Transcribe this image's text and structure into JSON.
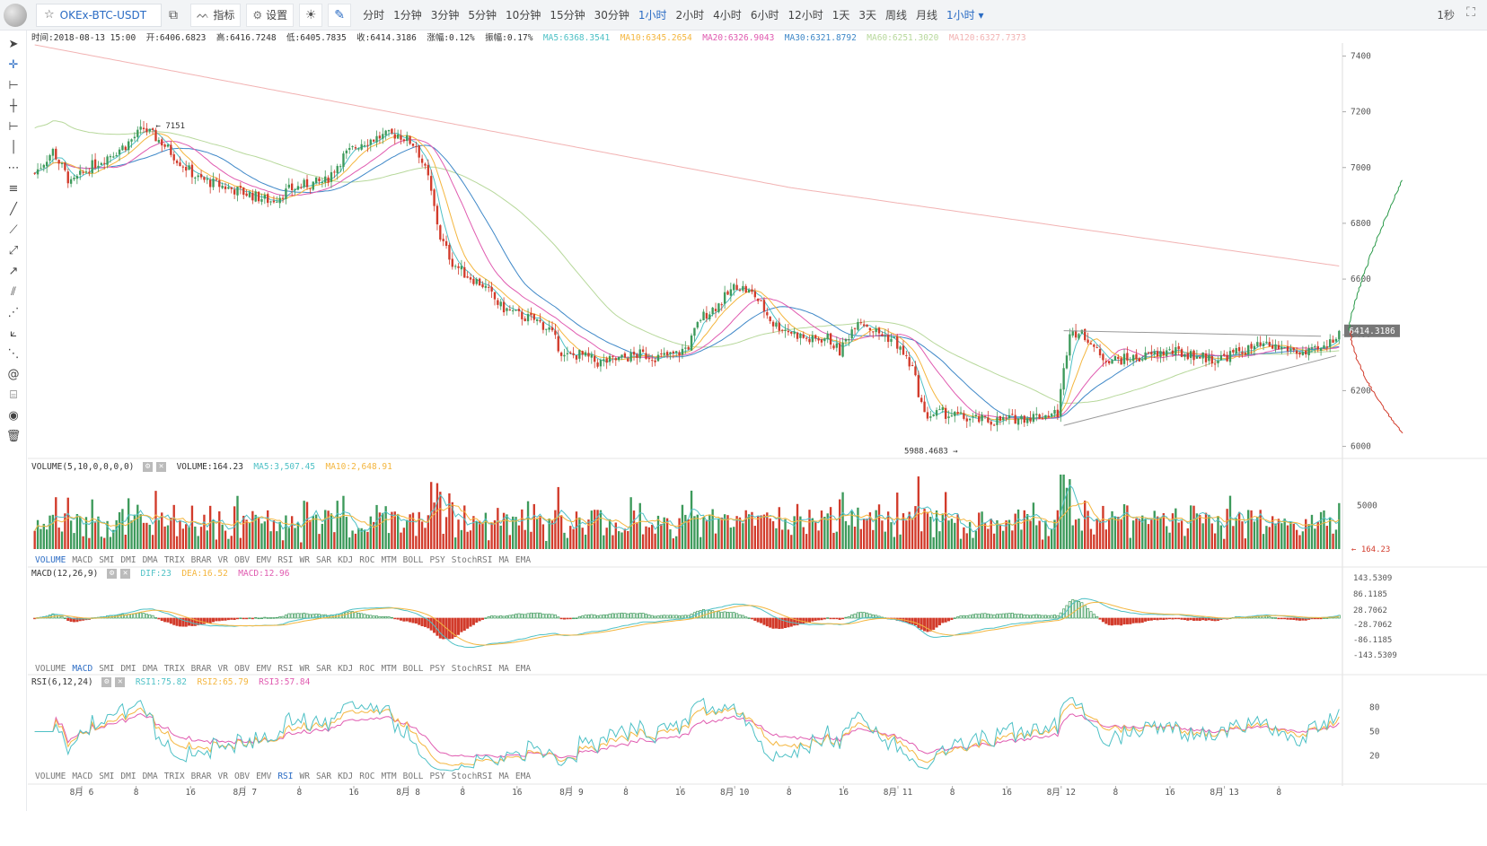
{
  "toolbar": {
    "pair": "OKEx-BTC-USDT",
    "indicator_label": "指标",
    "settings_label": "设置",
    "periods": [
      "分时",
      "1分钟",
      "3分钟",
      "5分钟",
      "10分钟",
      "15分钟",
      "30分钟",
      "1小时",
      "2小时",
      "4小时",
      "6小时",
      "12小时",
      "1天",
      "3天",
      "周线",
      "月线"
    ],
    "active_period": "1小时",
    "period_dropdown": "1小时",
    "refresh": "1秒"
  },
  "info_bar": {
    "time": "时间:2018-08-13 15:00",
    "open": "开:6406.6823",
    "high": "高:6416.7248",
    "low": "低:6405.7835",
    "close": "收:6414.3186",
    "change": "涨幅:0.12%",
    "amplitude": "振幅:0.17%",
    "ma5": "MA5:6368.3541",
    "ma10": "MA10:6345.2654",
    "ma20": "MA20:6326.9043",
    "ma30": "MA30:6321.8792",
    "ma60": "MA60:6251.3020",
    "ma120": "MA120:6327.7373"
  },
  "price_axis": [
    "7400",
    "7200",
    "7000",
    "6800",
    "6600",
    "6400",
    "6200",
    "6000"
  ],
  "price_label": "6414.3186",
  "annotations": {
    "high": "7151",
    "low": "5988.4683"
  },
  "volume_info": {
    "title": "VOLUME(5,10,0,0,0,0)",
    "volume": "VOLUME:164.23",
    "ma5": "MA5:3,507.45",
    "ma10": "MA10:2,648.91",
    "axis": "5000",
    "last": "164.23"
  },
  "macd_info": {
    "title": "MACD(12,26,9)",
    "dif": "DIF:23",
    "dea": "DEA:16.52",
    "macd": "MACD:12.96",
    "axis": [
      "143.5309",
      "86.1185",
      "28.7062",
      "-28.7062",
      "-86.1185",
      "-143.5309"
    ]
  },
  "rsi_info": {
    "title": "RSI(6,12,24)",
    "rsi1": "RSI1:75.82",
    "rsi2": "RSI2:65.79",
    "rsi3": "RSI3:57.84",
    "axis": [
      "80",
      "50",
      "20"
    ]
  },
  "indicator_tabs": [
    "VOLUME",
    "MACD",
    "SMI",
    "DMI",
    "DMA",
    "TRIX",
    "BRAR",
    "VR",
    "OBV",
    "EMV",
    "RSI",
    "WR",
    "SAR",
    "KDJ",
    "ROC",
    "MTM",
    "BOLL",
    "PSY",
    "StochRSI",
    "MA",
    "EMA"
  ],
  "time_axis": [
    "8月 6",
    "8",
    "16",
    "8月 7",
    "8",
    "16",
    "8月 8",
    "8",
    "16",
    "8月 9",
    "8",
    "16",
    "8月 10",
    "8",
    "16",
    "8月 11",
    "8",
    "16",
    "8月 12",
    "8",
    "16",
    "8月 13",
    "8"
  ],
  "colors": {
    "up": "#3d9a5b",
    "down": "#d23b2b",
    "ma5": "#4fc1c6",
    "ma10": "#f4b63f",
    "ma20": "#e05bb0",
    "ma30": "#3f88c8",
    "ma60": "#b7d89b",
    "ma120": "#f2b3b3"
  },
  "chart_data": {
    "type": "candlestick",
    "title": "OKEx-BTC-USDT 1小时",
    "x": "hourly, 2018-08-06 00:00 to 2018-08-13 15:00",
    "ylim": [
      5960,
      7440
    ],
    "price_path": [
      [
        0,
        6980
      ],
      [
        6,
        7060
      ],
      [
        12,
        6940
      ],
      [
        18,
        7000
      ],
      [
        24,
        7040
      ],
      [
        30,
        7080
      ],
      [
        36,
        7140
      ],
      [
        42,
        7090
      ],
      [
        48,
        7020
      ],
      [
        54,
        6960
      ],
      [
        60,
        6940
      ],
      [
        66,
        6920
      ],
      [
        72,
        6900
      ],
      [
        78,
        6880
      ],
      [
        84,
        6920
      ],
      [
        90,
        6940
      ],
      [
        96,
        6950
      ],
      [
        102,
        7040
      ],
      [
        108,
        7090
      ],
      [
        114,
        7110
      ],
      [
        120,
        7120
      ],
      [
        126,
        7080
      ],
      [
        130,
        6960
      ],
      [
        134,
        6750
      ],
      [
        138,
        6660
      ],
      [
        142,
        6620
      ],
      [
        148,
        6580
      ],
      [
        154,
        6500
      ],
      [
        160,
        6470
      ],
      [
        166,
        6450
      ],
      [
        170,
        6420
      ],
      [
        175,
        6320
      ],
      [
        180,
        6330
      ],
      [
        186,
        6300
      ],
      [
        192,
        6310
      ],
      [
        200,
        6330
      ],
      [
        206,
        6320
      ],
      [
        212,
        6330
      ],
      [
        216,
        6360
      ],
      [
        220,
        6460
      ],
      [
        226,
        6510
      ],
      [
        232,
        6580
      ],
      [
        238,
        6540
      ],
      [
        244,
        6440
      ],
      [
        250,
        6410
      ],
      [
        256,
        6380
      ],
      [
        262,
        6390
      ],
      [
        266,
        6340
      ],
      [
        272,
        6460
      ],
      [
        278,
        6410
      ],
      [
        284,
        6380
      ],
      [
        290,
        6280
      ],
      [
        294,
        6110
      ],
      [
        300,
        6120
      ],
      [
        308,
        6100
      ],
      [
        316,
        6090
      ],
      [
        324,
        6100
      ],
      [
        332,
        6110
      ],
      [
        338,
        6120
      ],
      [
        342,
        6420
      ],
      [
        348,
        6390
      ],
      [
        352,
        6320
      ],
      [
        358,
        6310
      ],
      [
        366,
        6320
      ],
      [
        374,
        6340
      ],
      [
        382,
        6330
      ],
      [
        390,
        6310
      ],
      [
        398,
        6340
      ],
      [
        406,
        6360
      ],
      [
        414,
        6350
      ],
      [
        420,
        6330
      ],
      [
        426,
        6350
      ],
      [
        431,
        6414
      ]
    ],
    "last_close": 6414.3186
  }
}
